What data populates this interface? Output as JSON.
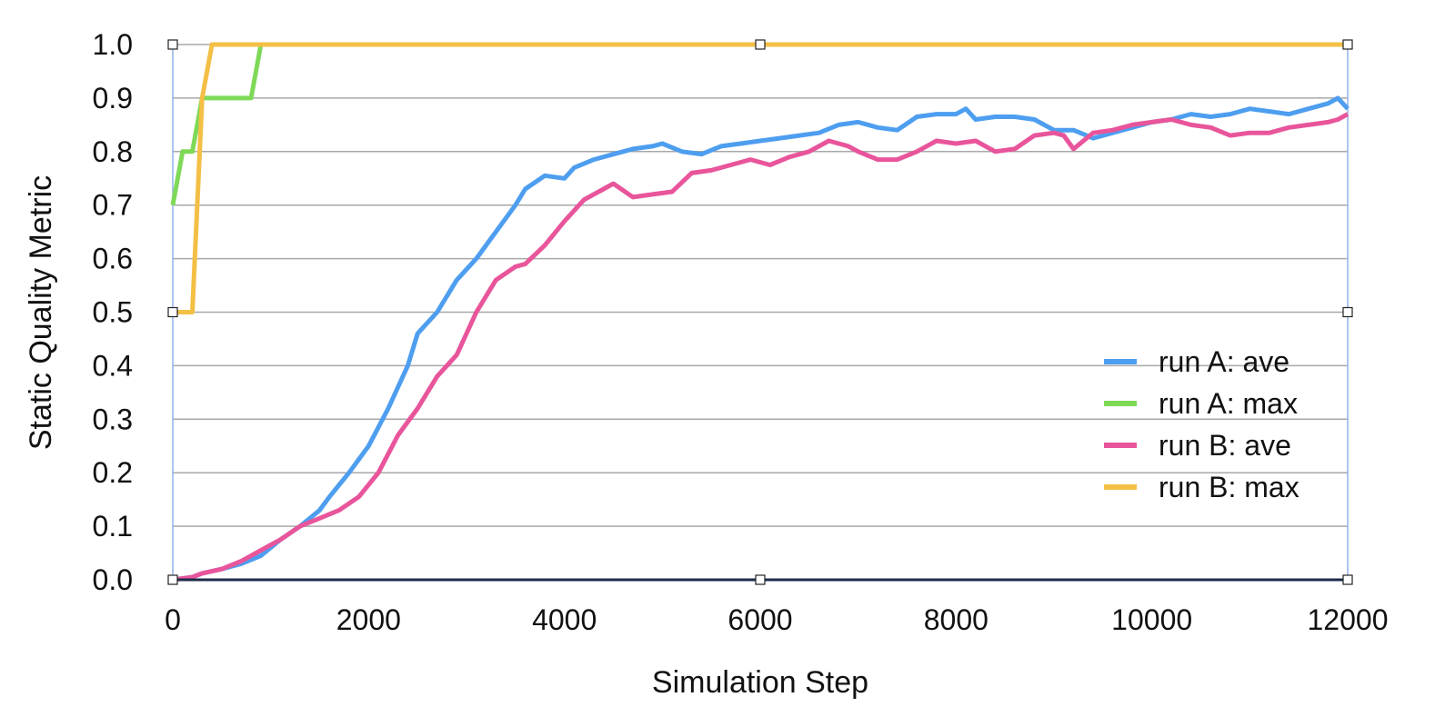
{
  "chart_data": {
    "type": "line",
    "title": "",
    "xlabel": "Simulation Step",
    "ylabel": "Static Quality Metric",
    "xlim": [
      0,
      12000
    ],
    "ylim": [
      0.0,
      1.0
    ],
    "x_ticks": [
      "0",
      "2000",
      "4000",
      "6000",
      "8000",
      "10000",
      "12000"
    ],
    "y_ticks": [
      "0.0",
      "0.1",
      "0.2",
      "0.3",
      "0.4",
      "0.5",
      "0.6",
      "0.7",
      "0.8",
      "0.9",
      "1.0"
    ],
    "grid": "horizontal",
    "legend_position": "right",
    "series": [
      {
        "name": "run A: ave",
        "color": "#4e9ef0",
        "points": [
          [
            0,
            0.0
          ],
          [
            200,
            0.005
          ],
          [
            300,
            0.012
          ],
          [
            500,
            0.02
          ],
          [
            700,
            0.03
          ],
          [
            900,
            0.045
          ],
          [
            1100,
            0.075
          ],
          [
            1300,
            0.1
          ],
          [
            1500,
            0.13
          ],
          [
            1600,
            0.155
          ],
          [
            1800,
            0.2
          ],
          [
            2000,
            0.25
          ],
          [
            2200,
            0.32
          ],
          [
            2400,
            0.4
          ],
          [
            2500,
            0.46
          ],
          [
            2700,
            0.5
          ],
          [
            2900,
            0.56
          ],
          [
            3100,
            0.6
          ],
          [
            3300,
            0.65
          ],
          [
            3500,
            0.7
          ],
          [
            3600,
            0.73
          ],
          [
            3800,
            0.755
          ],
          [
            4000,
            0.75
          ],
          [
            4100,
            0.77
          ],
          [
            4300,
            0.785
          ],
          [
            4500,
            0.795
          ],
          [
            4700,
            0.805
          ],
          [
            4900,
            0.81
          ],
          [
            5000,
            0.815
          ],
          [
            5200,
            0.8
          ],
          [
            5400,
            0.795
          ],
          [
            5600,
            0.81
          ],
          [
            5800,
            0.815
          ],
          [
            6000,
            0.82
          ],
          [
            6200,
            0.825
          ],
          [
            6400,
            0.83
          ],
          [
            6600,
            0.835
          ],
          [
            6800,
            0.85
          ],
          [
            7000,
            0.855
          ],
          [
            7200,
            0.845
          ],
          [
            7400,
            0.84
          ],
          [
            7600,
            0.865
          ],
          [
            7800,
            0.87
          ],
          [
            8000,
            0.87
          ],
          [
            8100,
            0.88
          ],
          [
            8200,
            0.86
          ],
          [
            8400,
            0.865
          ],
          [
            8600,
            0.865
          ],
          [
            8800,
            0.86
          ],
          [
            9000,
            0.84
          ],
          [
            9200,
            0.84
          ],
          [
            9400,
            0.825
          ],
          [
            9600,
            0.835
          ],
          [
            9800,
            0.845
          ],
          [
            10000,
            0.855
          ],
          [
            10200,
            0.86
          ],
          [
            10400,
            0.87
          ],
          [
            10600,
            0.865
          ],
          [
            10800,
            0.87
          ],
          [
            11000,
            0.88
          ],
          [
            11200,
            0.875
          ],
          [
            11400,
            0.87
          ],
          [
            11600,
            0.88
          ],
          [
            11800,
            0.89
          ],
          [
            11900,
            0.9
          ],
          [
            12000,
            0.88
          ]
        ]
      },
      {
        "name": "run A: max",
        "color": "#7ed957",
        "points": [
          [
            0,
            0.7
          ],
          [
            100,
            0.8
          ],
          [
            200,
            0.8
          ],
          [
            300,
            0.9
          ],
          [
            800,
            0.9
          ],
          [
            900,
            1.0
          ],
          [
            12000,
            1.0
          ]
        ]
      },
      {
        "name": "run B: ave",
        "color": "#e8559b",
        "points": [
          [
            0,
            0.0
          ],
          [
            200,
            0.005
          ],
          [
            300,
            0.012
          ],
          [
            500,
            0.02
          ],
          [
            700,
            0.035
          ],
          [
            900,
            0.055
          ],
          [
            1100,
            0.075
          ],
          [
            1300,
            0.1
          ],
          [
            1500,
            0.115
          ],
          [
            1700,
            0.13
          ],
          [
            1900,
            0.155
          ],
          [
            2100,
            0.2
          ],
          [
            2300,
            0.27
          ],
          [
            2500,
            0.32
          ],
          [
            2700,
            0.38
          ],
          [
            2900,
            0.42
          ],
          [
            3100,
            0.5
          ],
          [
            3300,
            0.56
          ],
          [
            3500,
            0.585
          ],
          [
            3600,
            0.59
          ],
          [
            3800,
            0.625
          ],
          [
            4000,
            0.67
          ],
          [
            4200,
            0.71
          ],
          [
            4400,
            0.73
          ],
          [
            4500,
            0.74
          ],
          [
            4700,
            0.715
          ],
          [
            4900,
            0.72
          ],
          [
            5100,
            0.725
          ],
          [
            5300,
            0.76
          ],
          [
            5500,
            0.765
          ],
          [
            5700,
            0.775
          ],
          [
            5900,
            0.785
          ],
          [
            6100,
            0.775
          ],
          [
            6300,
            0.79
          ],
          [
            6500,
            0.8
          ],
          [
            6700,
            0.82
          ],
          [
            6900,
            0.81
          ],
          [
            7000,
            0.8
          ],
          [
            7200,
            0.785
          ],
          [
            7400,
            0.785
          ],
          [
            7600,
            0.8
          ],
          [
            7800,
            0.82
          ],
          [
            8000,
            0.815
          ],
          [
            8200,
            0.82
          ],
          [
            8400,
            0.8
          ],
          [
            8600,
            0.805
          ],
          [
            8800,
            0.83
          ],
          [
            9000,
            0.835
          ],
          [
            9100,
            0.83
          ],
          [
            9200,
            0.805
          ],
          [
            9400,
            0.835
          ],
          [
            9600,
            0.84
          ],
          [
            9800,
            0.85
          ],
          [
            10000,
            0.855
          ],
          [
            10200,
            0.86
          ],
          [
            10400,
            0.85
          ],
          [
            10600,
            0.845
          ],
          [
            10800,
            0.83
          ],
          [
            11000,
            0.835
          ],
          [
            11200,
            0.835
          ],
          [
            11400,
            0.845
          ],
          [
            11600,
            0.85
          ],
          [
            11800,
            0.855
          ],
          [
            11900,
            0.86
          ],
          [
            12000,
            0.87
          ]
        ]
      },
      {
        "name": "run B: max",
        "color": "#f4bf45",
        "points": [
          [
            0,
            0.5
          ],
          [
            200,
            0.5
          ],
          [
            300,
            0.9
          ],
          [
            400,
            1.0
          ],
          [
            12000,
            1.0
          ]
        ]
      }
    ]
  }
}
